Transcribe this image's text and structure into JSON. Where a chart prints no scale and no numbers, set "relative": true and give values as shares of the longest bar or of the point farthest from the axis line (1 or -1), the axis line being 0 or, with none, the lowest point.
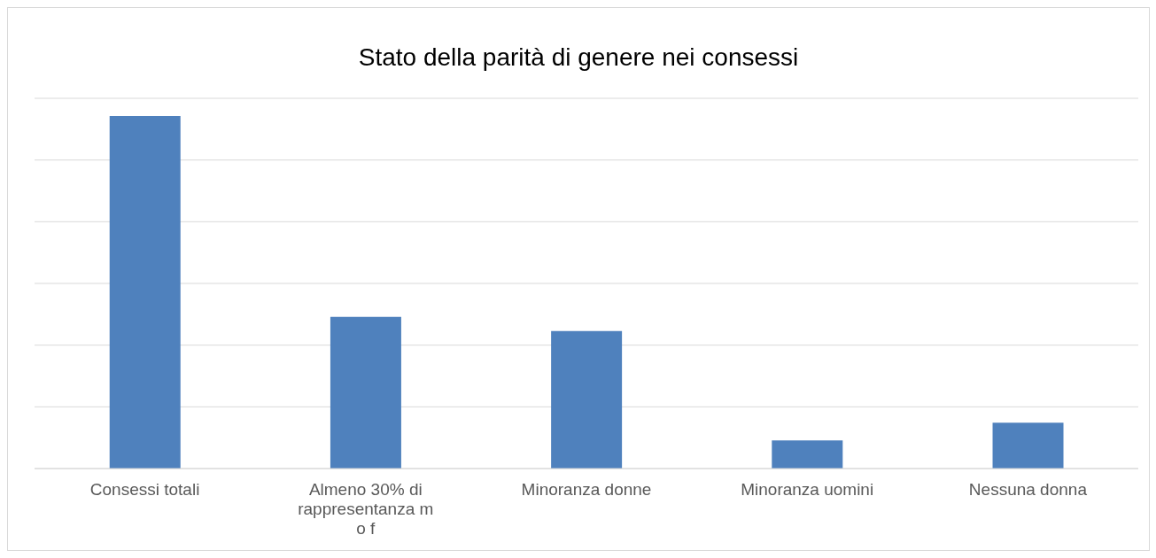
{
  "chart_data": {
    "type": "bar",
    "title": "Stato della parità di genere nei consessi",
    "categories": [
      "Consessi totali",
      "Almeno 30% di rappresentanza m o f",
      "Minoranza donne",
      "Minoranza uomini",
      "Nessuna donna"
    ],
    "values": [
      1,
      0.43,
      0.39,
      0.08,
      0.13
    ],
    "color": "#4f81bd",
    "relative": true,
    "grid": "y"
  }
}
